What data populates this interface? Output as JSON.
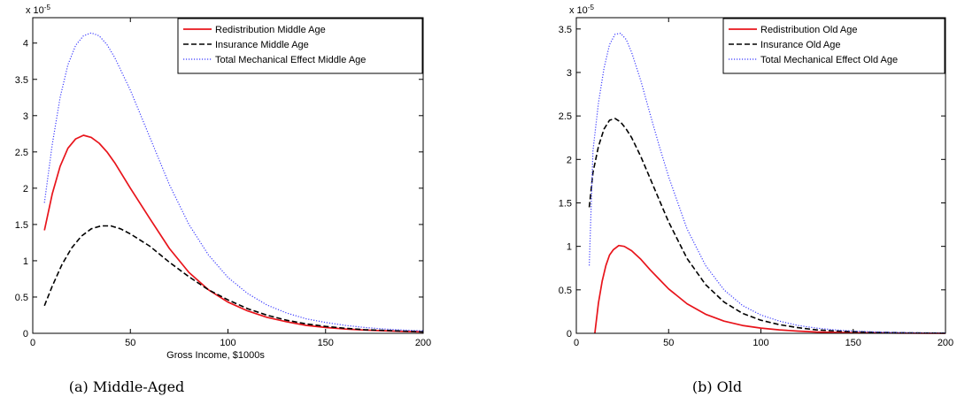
{
  "chart_data": [
    {
      "type": "line",
      "caption": "(a)  Middle-Aged",
      "xlabel": "Gross Income, $1000s",
      "ylabel": "",
      "exponent_label": "x 10",
      "exponent_power": "-5",
      "xlim": [
        0,
        200
      ],
      "ylim": [
        0,
        4.35
      ],
      "xticks": [
        0,
        50,
        100,
        150,
        200
      ],
      "yticks": [
        0,
        0.5,
        1,
        1.5,
        2,
        2.5,
        3,
        3.5,
        4
      ],
      "ytick_labels": [
        "0",
        "0.5",
        "1",
        "1.5",
        "2",
        "2.5",
        "3",
        "3.5",
        "4"
      ],
      "xtick_labels": [
        "0",
        "50",
        "100",
        "150",
        "200"
      ],
      "legend_position": "top-right",
      "series": [
        {
          "name": "Redistribution Middle Age",
          "color": "#e8141b",
          "style": "solid",
          "x": [
            6,
            10,
            14,
            18,
            22,
            26,
            30,
            34,
            38,
            42,
            50,
            60,
            70,
            80,
            90,
            100,
            110,
            120,
            130,
            140,
            150,
            160,
            170,
            180,
            190,
            200
          ],
          "y": [
            1.42,
            1.92,
            2.3,
            2.55,
            2.68,
            2.73,
            2.7,
            2.62,
            2.5,
            2.35,
            2.0,
            1.58,
            1.17,
            0.84,
            0.6,
            0.43,
            0.31,
            0.22,
            0.16,
            0.11,
            0.08,
            0.06,
            0.045,
            0.035,
            0.025,
            0.02
          ]
        },
        {
          "name": "Insurance Middle Age",
          "color": "#000000",
          "style": "dashed",
          "x": [
            6,
            10,
            15,
            20,
            25,
            30,
            35,
            40,
            45,
            50,
            60,
            70,
            80,
            90,
            100,
            110,
            120,
            130,
            140,
            150,
            160,
            170,
            180,
            190,
            200
          ],
          "y": [
            0.38,
            0.65,
            0.95,
            1.18,
            1.34,
            1.44,
            1.48,
            1.48,
            1.44,
            1.37,
            1.2,
            0.98,
            0.78,
            0.6,
            0.46,
            0.34,
            0.25,
            0.18,
            0.13,
            0.095,
            0.07,
            0.05,
            0.04,
            0.03,
            0.02
          ]
        },
        {
          "name": "Total Mechanical Effect Middle Age",
          "color": "#3b3bff",
          "style": "dotted",
          "x": [
            6,
            10,
            14,
            18,
            22,
            26,
            30,
            34,
            38,
            42,
            50,
            60,
            70,
            80,
            90,
            100,
            110,
            120,
            130,
            140,
            150,
            160,
            170,
            180,
            190,
            200
          ],
          "y": [
            1.8,
            2.6,
            3.25,
            3.7,
            3.97,
            4.1,
            4.14,
            4.1,
            3.98,
            3.8,
            3.35,
            2.7,
            2.05,
            1.5,
            1.08,
            0.77,
            0.55,
            0.39,
            0.28,
            0.2,
            0.15,
            0.11,
            0.08,
            0.06,
            0.045,
            0.035
          ]
        }
      ]
    },
    {
      "type": "line",
      "caption": "(b)  Old",
      "xlabel": "",
      "ylabel": "",
      "exponent_label": "x 10",
      "exponent_power": "-5",
      "xlim": [
        0,
        200
      ],
      "ylim": [
        0,
        3.63
      ],
      "xticks": [
        0,
        50,
        100,
        150,
        200
      ],
      "yticks": [
        0,
        0.5,
        1,
        1.5,
        2,
        2.5,
        3,
        3.5
      ],
      "ytick_labels": [
        "0",
        "0.5",
        "1",
        "1.5",
        "2",
        "2.5",
        "3",
        "3.5"
      ],
      "xtick_labels": [
        "0",
        "50",
        "100",
        "150",
        "200"
      ],
      "legend_position": "top-right",
      "series": [
        {
          "name": "Redistribution Old Age",
          "color": "#e8141b",
          "style": "solid",
          "x": [
            10,
            12,
            14,
            16,
            18,
            20,
            23,
            26,
            30,
            35,
            40,
            45,
            50,
            60,
            70,
            80,
            90,
            100,
            110,
            120,
            130,
            140,
            150,
            160,
            170,
            180,
            190,
            200
          ],
          "y": [
            0.0,
            0.35,
            0.6,
            0.78,
            0.9,
            0.96,
            1.01,
            1.0,
            0.95,
            0.85,
            0.73,
            0.62,
            0.51,
            0.34,
            0.22,
            0.14,
            0.09,
            0.06,
            0.04,
            0.025,
            0.015,
            0.01,
            0.007,
            0.005,
            0.003,
            0.002,
            0.001,
            0.001
          ]
        },
        {
          "name": "Insurance Old Age",
          "color": "#000000",
          "style": "dashed",
          "x": [
            7,
            9,
            12,
            15,
            18,
            21,
            24,
            27,
            30,
            35,
            40,
            45,
            50,
            60,
            70,
            80,
            90,
            100,
            110,
            120,
            130,
            140,
            150,
            160,
            170,
            180,
            190,
            200
          ],
          "y": [
            1.45,
            1.85,
            2.15,
            2.35,
            2.45,
            2.47,
            2.43,
            2.35,
            2.25,
            2.03,
            1.78,
            1.53,
            1.28,
            0.86,
            0.56,
            0.36,
            0.23,
            0.15,
            0.1,
            0.065,
            0.04,
            0.027,
            0.018,
            0.012,
            0.008,
            0.005,
            0.003,
            0.002
          ]
        },
        {
          "name": "Total Mechanical Effect Old Age",
          "color": "#3b3bff",
          "style": "dotted",
          "x": [
            7,
            9,
            12,
            15,
            18,
            21,
            24,
            27,
            30,
            35,
            40,
            45,
            50,
            60,
            70,
            80,
            90,
            100,
            110,
            120,
            130,
            140,
            150,
            160,
            170,
            180,
            190,
            200
          ],
          "y": [
            0.78,
            2.1,
            2.65,
            3.05,
            3.32,
            3.44,
            3.45,
            3.38,
            3.23,
            2.9,
            2.52,
            2.15,
            1.8,
            1.2,
            0.78,
            0.5,
            0.32,
            0.21,
            0.14,
            0.09,
            0.06,
            0.04,
            0.026,
            0.017,
            0.011,
            0.007,
            0.004,
            0.003
          ]
        }
      ]
    }
  ]
}
